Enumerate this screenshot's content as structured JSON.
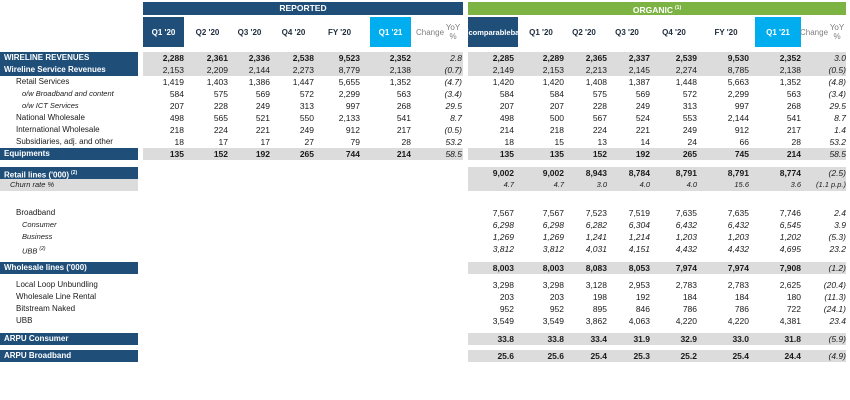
{
  "headers": {
    "reported": "REPORTED",
    "organic": "ORGANIC",
    "organic_note": "(1)",
    "reported_cols": [
      "Q1 '20",
      "Q2 '20",
      "Q3 '20",
      "Q4 '20",
      "FY '20",
      "Q1 '21"
    ],
    "reported_change": [
      "Change",
      "YoY %"
    ],
    "organic_comparable": [
      "Q1 '20",
      "comparable",
      "base"
    ],
    "organic_cols": [
      "Q1 '20",
      "Q2 '20",
      "Q3 '20",
      "Q4 '20",
      "FY '20",
      "Q1 '21"
    ],
    "organic_change": [
      "Change",
      "YoY %"
    ]
  },
  "rows": [
    {
      "label": "WIRELINE REVENUES",
      "style": "head",
      "shaded": true,
      "bold": true,
      "rep": [
        "2,288",
        "2,361",
        "2,336",
        "2,538",
        "9,523",
        "2,352"
      ],
      "rep_chg": "2.8",
      "org": [
        "2,285",
        "2,289",
        "2,365",
        "2,337",
        "2,539",
        "9,530",
        "2,352"
      ],
      "org_chg": "3.0"
    },
    {
      "label": "Wireline Service Revenues",
      "style": "head",
      "shaded": true,
      "bold": false,
      "rep": [
        "2,153",
        "2,209",
        "2,144",
        "2,273",
        "8,779",
        "2,138"
      ],
      "rep_chg": "(0.7)",
      "org": [
        "2,149",
        "2,153",
        "2,213",
        "2,145",
        "2,274",
        "8,785",
        "2,138"
      ],
      "org_chg": "(0.5)"
    },
    {
      "label": "Retail Services",
      "style": "plain",
      "indent": 1,
      "rep": [
        "1,419",
        "1,403",
        "1,386",
        "1,447",
        "5,655",
        "1,352"
      ],
      "rep_chg": "(4.7)",
      "org": [
        "1,420",
        "1,420",
        "1,408",
        "1,387",
        "1,448",
        "5,663",
        "1,352"
      ],
      "org_chg": "(4.8)"
    },
    {
      "label": "o/w Broadband and content",
      "style": "ital",
      "indent": 2,
      "rep": [
        "584",
        "575",
        "569",
        "572",
        "2,299",
        "563"
      ],
      "rep_chg": "(3.4)",
      "org": [
        "584",
        "584",
        "575",
        "569",
        "572",
        "2,299",
        "563"
      ],
      "org_chg": "(3.4)"
    },
    {
      "label": "o/w ICT Services",
      "style": "ital",
      "indent": 2,
      "rep": [
        "207",
        "228",
        "249",
        "313",
        "997",
        "268"
      ],
      "rep_chg": "29.5",
      "org": [
        "207",
        "207",
        "228",
        "249",
        "313",
        "997",
        "268"
      ],
      "org_chg": "29.5"
    },
    {
      "label": "National Wholesale",
      "style": "plain",
      "indent": 1,
      "rep": [
        "498",
        "565",
        "521",
        "550",
        "2,133",
        "541"
      ],
      "rep_chg": "8.7",
      "org": [
        "498",
        "500",
        "567",
        "524",
        "553",
        "2,144",
        "541"
      ],
      "org_chg": "8.7"
    },
    {
      "label": "International Wholesale",
      "style": "plain",
      "indent": 1,
      "rep": [
        "218",
        "224",
        "221",
        "249",
        "912",
        "217"
      ],
      "rep_chg": "(0.5)",
      "org": [
        "214",
        "218",
        "224",
        "221",
        "249",
        "912",
        "217"
      ],
      "org_chg": "1.4"
    },
    {
      "label": "Subsidiaries, adj. and other",
      "style": "plain",
      "indent": 1,
      "rep": [
        "18",
        "17",
        "17",
        "27",
        "79",
        "28"
      ],
      "rep_chg": "53.2",
      "org": [
        "18",
        "15",
        "13",
        "14",
        "24",
        "66",
        "28"
      ],
      "org_chg": "53.2"
    },
    {
      "label": "Equipments",
      "style": "head",
      "shaded": true,
      "bold": true,
      "rep": [
        "135",
        "152",
        "192",
        "265",
        "744",
        "214"
      ],
      "rep_chg": "58.5",
      "org": [
        "135",
        "135",
        "152",
        "192",
        "265",
        "745",
        "214"
      ],
      "org_chg": "58.5"
    },
    {
      "label": "Retail lines ('000)",
      "note": "(2)",
      "style": "head",
      "shaded": true,
      "bold": true,
      "gap": 7,
      "rep": [],
      "rep_chg": "",
      "org": [
        "9,002",
        "9,002",
        "8,943",
        "8,784",
        "8,791",
        "8,791",
        "8,774"
      ],
      "org_chg": "(2.5)"
    },
    {
      "label": "Churn rate %",
      "style": "small",
      "shaded": true,
      "italrow": true,
      "rep": [],
      "rep_chg": "",
      "org": [
        "4.7",
        "4.7",
        "3.0",
        "4.0",
        "4.0",
        "15.6",
        "3.6"
      ],
      "org_chg": "(1.1 p.p.)"
    },
    {
      "label": "Broadband",
      "style": "plain",
      "indent": 1,
      "gap": 16,
      "rep": [],
      "rep_chg": "",
      "org": [
        "7,567",
        "7,567",
        "7,523",
        "7,519",
        "7,635",
        "7,635",
        "7,746"
      ],
      "org_chg": "2.4"
    },
    {
      "label": "Consumer",
      "style": "ital",
      "indent": 2,
      "italrow": true,
      "rep": [],
      "rep_chg": "",
      "org": [
        "6,298",
        "6,298",
        "6,282",
        "6,304",
        "6,432",
        "6,432",
        "6,545"
      ],
      "org_chg": "3.9"
    },
    {
      "label": "Business",
      "style": "ital",
      "indent": 2,
      "italrow": true,
      "rep": [],
      "rep_chg": "",
      "org": [
        "1,269",
        "1,269",
        "1,241",
        "1,214",
        "1,203",
        "1,203",
        "1,202"
      ],
      "org_chg": "(5.3)"
    },
    {
      "label": "UBB",
      "note": "(2)",
      "style": "ital",
      "indent": 2,
      "italrow": true,
      "rep": [],
      "rep_chg": "",
      "org": [
        "3,812",
        "3,812",
        "4,031",
        "4,151",
        "4,432",
        "4,432",
        "4,695"
      ],
      "org_chg": "23.2"
    },
    {
      "label": "Wholesale lines ('000)",
      "style": "head",
      "shaded": true,
      "bold": true,
      "gap": 7,
      "rep": [],
      "rep_chg": "",
      "org": [
        "8,003",
        "8,003",
        "8,083",
        "8,053",
        "7,974",
        "7,974",
        "7,908"
      ],
      "org_chg": "(1.2)"
    },
    {
      "label": "Local Loop Unbundling",
      "style": "plain",
      "indent": 1,
      "gap": 5,
      "rep": [],
      "rep_chg": "",
      "org": [
        "3,298",
        "3,298",
        "3,128",
        "2,953",
        "2,783",
        "2,783",
        "2,625"
      ],
      "org_chg": "(20.4)"
    },
    {
      "label": "Wholesale Line Rental",
      "style": "plain",
      "indent": 1,
      "rep": [],
      "rep_chg": "",
      "org": [
        "203",
        "203",
        "198",
        "192",
        "184",
        "184",
        "180"
      ],
      "org_chg": "(11.3)"
    },
    {
      "label": "Bitstream Naked",
      "style": "plain",
      "indent": 1,
      "rep": [],
      "rep_chg": "",
      "org": [
        "952",
        "952",
        "895",
        "846",
        "786",
        "786",
        "722"
      ],
      "org_chg": "(24.1)"
    },
    {
      "label": "UBB",
      "style": "plain",
      "indent": 1,
      "rep": [],
      "rep_chg": "",
      "org": [
        "3,549",
        "3,549",
        "3,862",
        "4,063",
        "4,220",
        "4,220",
        "4,381"
      ],
      "org_chg": "23.4"
    },
    {
      "label": "ARPU Consumer",
      "style": "head",
      "shaded": true,
      "bold": true,
      "gap": 6,
      "rep": [],
      "rep_chg": "",
      "org": [
        "33.8",
        "33.8",
        "33.4",
        "31.9",
        "32.9",
        "33.0",
        "31.8"
      ],
      "org_chg": "(5.9)"
    },
    {
      "label": "ARPU Broadband",
      "style": "head",
      "shaded": true,
      "bold": true,
      "gap": 5,
      "rep": [],
      "rep_chg": "",
      "org": [
        "25.6",
        "25.6",
        "25.4",
        "25.3",
        "25.2",
        "25.4",
        "24.4"
      ],
      "org_chg": "(4.9)"
    }
  ]
}
